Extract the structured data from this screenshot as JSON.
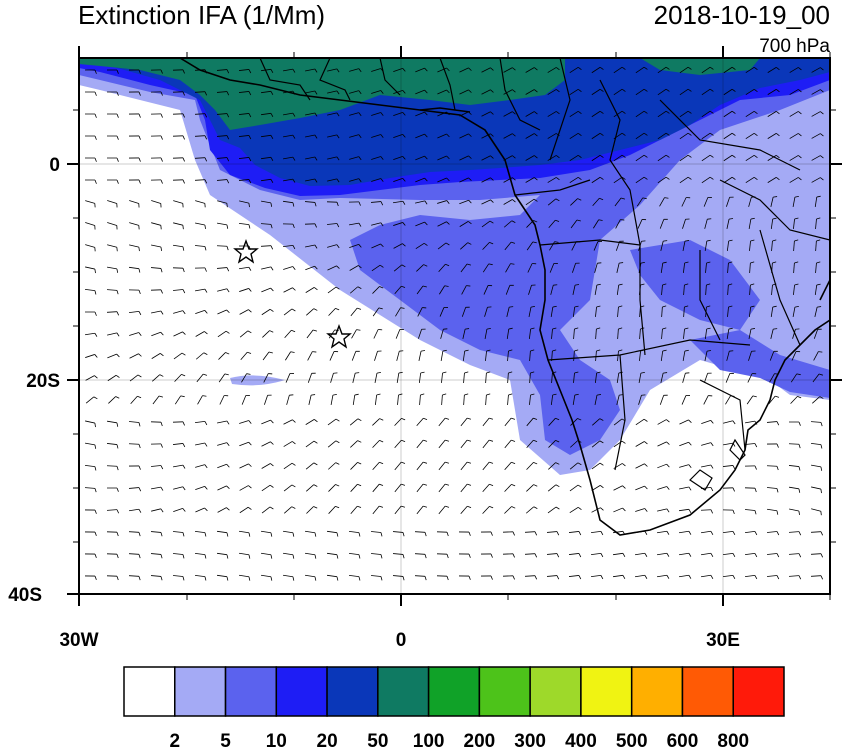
{
  "title": "Extinction IFA (1/Mm)",
  "datetime": "2018-10-19_00",
  "level": "700 hPa",
  "axes": {
    "x_ticks": [
      "30W",
      "0",
      "30E"
    ],
    "y_ticks": [
      "0",
      "20S",
      "40S"
    ]
  },
  "colorbar": {
    "labels": [
      "2",
      "5",
      "10",
      "20",
      "50",
      "100",
      "200",
      "300",
      "400",
      "500",
      "600",
      "800"
    ],
    "colors": [
      "#ffffff",
      "#a4aaf5",
      "#5b62ee",
      "#1e1df5",
      "#0a37b9",
      "#0f7a62",
      "#10a228",
      "#4dc31a",
      "#9ed92a",
      "#f0f312",
      "#ffaf00",
      "#ff5a05",
      "#ff1a0a"
    ]
  },
  "markers": [
    {
      "type": "star",
      "label": ""
    },
    {
      "type": "star",
      "label": ""
    }
  ]
}
